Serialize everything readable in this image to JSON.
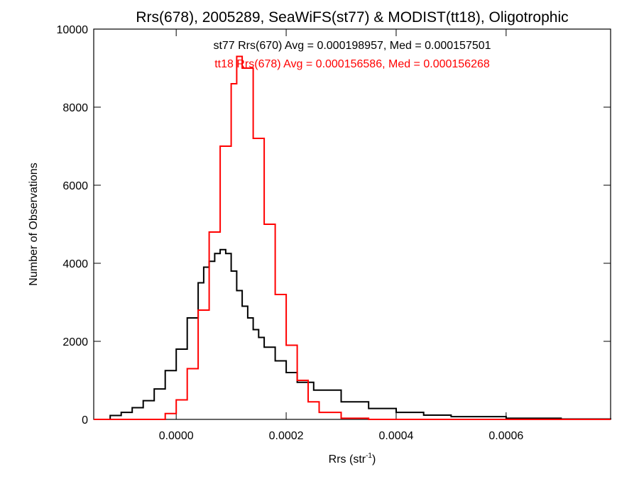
{
  "chart_data": {
    "type": "line",
    "title": "Rrs(678), 2005289, SeaWiFS(st77) & MODIST(tt18), Oligotrophic",
    "xlabel_main": "Rrs (str",
    "xlabel_sup": "-1",
    "xlabel_close": ")",
    "ylabel": "Number of Observations",
    "xlim": [
      -0.00015,
      0.00079
    ],
    "ylim": [
      0,
      10000
    ],
    "x_ticks": [
      0.0,
      0.0002,
      0.0004,
      0.0006
    ],
    "x_tick_labels": [
      "0.0000",
      "0.0002",
      "0.0004",
      "0.0006"
    ],
    "y_ticks": [
      0,
      2000,
      4000,
      6000,
      8000,
      10000
    ],
    "y_tick_labels": [
      "0",
      "2000",
      "4000",
      "6000",
      "8000",
      "10000"
    ],
    "stats": [
      {
        "text": "st77 Rrs(670) Avg = 0.000198957, Med = 0.000157501",
        "color": "#000000"
      },
      {
        "text": "tt18 Rrs(678) Avg = 0.000156586, Med = 0.000156268",
        "color": "#ff0000"
      }
    ],
    "series": [
      {
        "color": "#000000",
        "points": [
          [
            -0.00015,
            0
          ],
          [
            -0.00012,
            100
          ],
          [
            -0.0001,
            180
          ],
          [
            -8e-05,
            300
          ],
          [
            -6e-05,
            480
          ],
          [
            -4e-05,
            780
          ],
          [
            -2e-05,
            1250
          ],
          [
            0.0,
            1800
          ],
          [
            2e-05,
            2600
          ],
          [
            4e-05,
            3500
          ],
          [
            5e-05,
            3900
          ],
          [
            6e-05,
            4050
          ],
          [
            7e-05,
            4250
          ],
          [
            8e-05,
            4350
          ],
          [
            9e-05,
            4250
          ],
          [
            0.0001,
            3800
          ],
          [
            0.00011,
            3300
          ],
          [
            0.00012,
            2900
          ],
          [
            0.00013,
            2600
          ],
          [
            0.00014,
            2300
          ],
          [
            0.00015,
            2100
          ],
          [
            0.00016,
            1850
          ],
          [
            0.00018,
            1500
          ],
          [
            0.0002,
            1200
          ],
          [
            0.00022,
            950
          ],
          [
            0.00025,
            750
          ],
          [
            0.0003,
            450
          ],
          [
            0.00035,
            280
          ],
          [
            0.0004,
            180
          ],
          [
            0.00045,
            110
          ],
          [
            0.0005,
            70
          ],
          [
            0.0006,
            30
          ],
          [
            0.0007,
            10
          ],
          [
            0.00079,
            0
          ]
        ]
      },
      {
        "color": "#ff0000",
        "points": [
          [
            -0.00015,
            0
          ],
          [
            -4e-05,
            0
          ],
          [
            -2e-05,
            150
          ],
          [
            0.0,
            500
          ],
          [
            2e-05,
            1300
          ],
          [
            4e-05,
            2800
          ],
          [
            6e-05,
            4800
          ],
          [
            8e-05,
            7000
          ],
          [
            0.0001,
            8600
          ],
          [
            0.00011,
            9300
          ],
          [
            0.00012,
            9000
          ],
          [
            0.00014,
            7200
          ],
          [
            0.00016,
            5000
          ],
          [
            0.00018,
            3200
          ],
          [
            0.0002,
            1900
          ],
          [
            0.00022,
            1000
          ],
          [
            0.00024,
            450
          ],
          [
            0.00026,
            180
          ],
          [
            0.0003,
            30
          ],
          [
            0.00035,
            0
          ],
          [
            0.00079,
            0
          ]
        ]
      }
    ]
  }
}
